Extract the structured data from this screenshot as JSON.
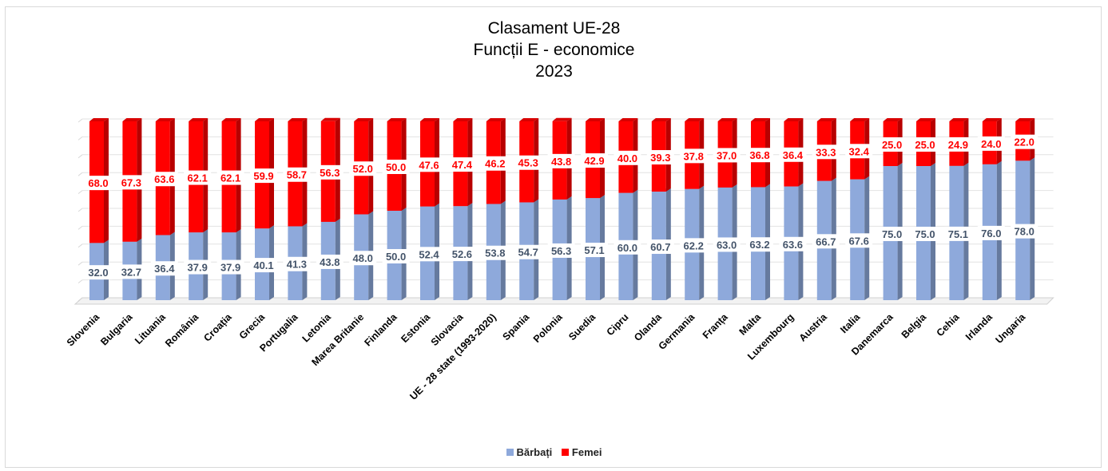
{
  "chart_data": {
    "type": "bar",
    "stacked": true,
    "percent": true,
    "title": [
      "Clasament UE-28",
      "Funcții E - economice",
      "2023"
    ],
    "categories": [
      "Slovenia",
      "Bulgaria",
      "Lituania",
      "România",
      "Croația",
      "Grecia",
      "Portugalia",
      "Letonia",
      "Marea Britanie",
      "Finlanda",
      "Estonia",
      "Slovacia",
      "UE - 28 state (1993-2020)",
      "Spania",
      "Polonia",
      "Suedia",
      "Cipru",
      "Olanda",
      "Germania",
      "Franța",
      "Malta",
      "Luxembourg",
      "Austria",
      "Italia",
      "Danemarca",
      "Belgia",
      "Cehia",
      "Irlanda",
      "Ungaria"
    ],
    "series": [
      {
        "name": "Bărbați",
        "color": "#8ea9db",
        "values": [
          32.0,
          32.7,
          36.4,
          37.9,
          37.9,
          40.1,
          41.3,
          43.8,
          48.0,
          50.0,
          52.4,
          52.6,
          53.8,
          54.7,
          56.3,
          57.1,
          60.0,
          60.7,
          62.2,
          63.0,
          63.2,
          63.6,
          66.7,
          67.6,
          75.0,
          75.0,
          75.1,
          76.0,
          78.0
        ]
      },
      {
        "name": "Femei",
        "color": "#ff0000",
        "values": [
          68.0,
          67.3,
          63.6,
          62.1,
          62.1,
          59.9,
          58.7,
          56.3,
          52.0,
          50.0,
          47.6,
          47.4,
          46.2,
          45.3,
          43.8,
          42.9,
          40.0,
          39.3,
          37.8,
          37.0,
          36.8,
          36.4,
          33.3,
          32.4,
          25.0,
          25.0,
          24.9,
          24.0,
          22.0
        ]
      }
    ],
    "ylim": [
      0,
      100
    ],
    "grid": true,
    "legend_position": "bottom",
    "data_labels": true,
    "label_decimals": 1
  }
}
